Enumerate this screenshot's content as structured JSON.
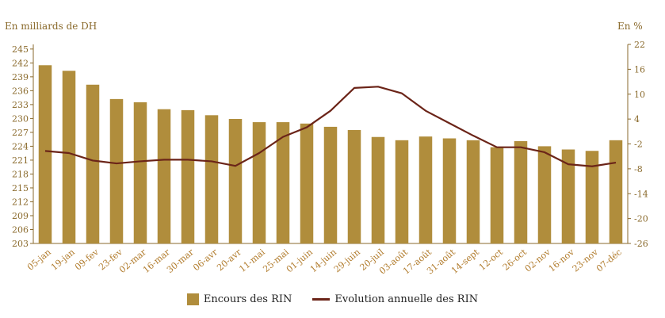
{
  "chart_data": {
    "type": "bar+line",
    "title": "",
    "y_left_label": "En milliards de DH",
    "y_right_label": "En %",
    "y_left_ticks": [
      "245",
      "242",
      "239",
      "236",
      "233",
      "230",
      "227",
      "224",
      "221",
      "218",
      "215",
      "212",
      "209",
      "206",
      "203"
    ],
    "y_right_ticks": [
      "22",
      "16",
      "10",
      "4",
      "-2",
      "-8",
      "-14",
      "-20",
      "-26"
    ],
    "ylim_left": [
      203,
      246
    ],
    "ylim_right": [
      -26,
      22
    ],
    "categories": [
      "05-jan",
      "19-jan",
      "09-fev",
      "23-fev",
      "02-mar",
      "16-mar",
      "30-mar",
      "06-avr",
      "20-avr",
      "11-mai",
      "25-mai",
      "01-juin",
      "14-juin",
      "29-juin",
      "20-juil",
      "03-août",
      "17-août",
      "31-août",
      "14-sept",
      "12-oct",
      "26-oct",
      "02-nov",
      "16-nov",
      "23-nov",
      "07-déc"
    ],
    "series": [
      {
        "name": "Encours des RIN",
        "type": "bar",
        "axis": "left",
        "color": "#b08d3c",
        "values": [
          241.5,
          240.3,
          237.3,
          234.2,
          233.5,
          232.0,
          231.8,
          230.7,
          229.9,
          229.2,
          229.2,
          228.9,
          228.2,
          227.5,
          226.0,
          225.3,
          226.1,
          225.7,
          225.3,
          223.8,
          225.1,
          224.0,
          223.3,
          223.0,
          225.3
        ]
      },
      {
        "name": "Evolution annuelle des RIN",
        "type": "line",
        "axis": "right",
        "color": "#6b2418",
        "values": [
          -3.7,
          -4.2,
          -6.0,
          -6.7,
          -6.2,
          -5.8,
          -5.8,
          -6.2,
          -7.3,
          -4.2,
          -0.3,
          2.0,
          6.0,
          11.5,
          11.8,
          10.2,
          6.0,
          3.0,
          0.0,
          -2.8,
          -2.8,
          -4.0,
          -6.9,
          -7.4,
          -6.5
        ]
      }
    ],
    "grid": false,
    "legend_position": "bottom"
  }
}
